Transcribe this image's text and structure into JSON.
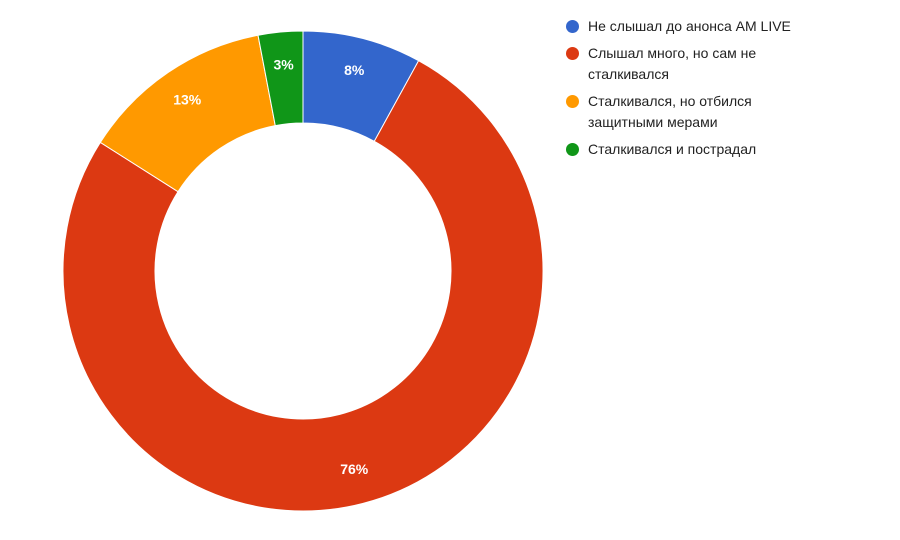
{
  "chart_data": {
    "type": "pie",
    "donut": true,
    "categories": [
      "Не слышал до анонса AM LIVE",
      "Слышал много, но сам не сталкивался",
      "Сталкивался, но отбился защитными мерами",
      "Сталкивался и пострадал"
    ],
    "values": [
      8,
      76,
      13,
      3
    ],
    "value_labels": [
      "8%",
      "76%",
      "13%",
      "3%"
    ],
    "colors": [
      "#3366cc",
      "#dc3912",
      "#ff9900",
      "#109618"
    ],
    "legend": "right"
  }
}
